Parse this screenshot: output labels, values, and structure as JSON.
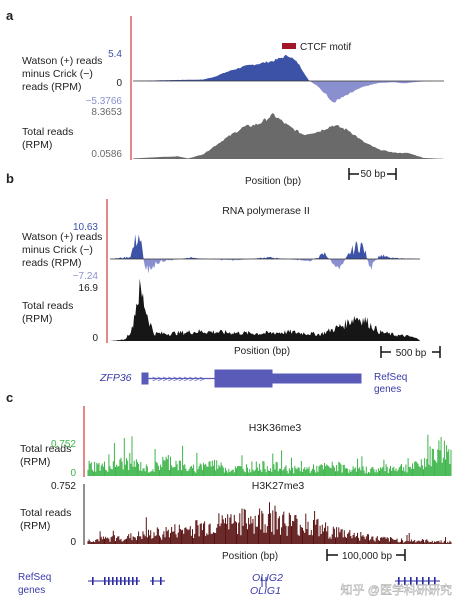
{
  "colors": {
    "watson": "#3b52a6",
    "crick": "#8a90cf",
    "total": "#6a6a6a",
    "pol_total": "#161616",
    "h3k36": "#3cb54a",
    "h3k27": "#5a1212",
    "axis_red": "#d23a3a",
    "ctcf": "#a3162a",
    "gene": "#5a5ab8"
  },
  "panels": {
    "a": {
      "label": "a",
      "ylabel_top": [
        "Watson (+) reads",
        "minus Crick (−)",
        "reads (RPM)"
      ],
      "tick_max": "5.4",
      "tick_zero": "0",
      "tick_min": "−5.3766",
      "ylabel_bottom": [
        "Total reads",
        "(RPM)"
      ],
      "tick_total_max": "8.3653",
      "tick_total_min": "0.0586",
      "legend": "CTCF motif",
      "xlabel": "Position (bp)",
      "scale": "50 bp"
    },
    "b": {
      "label": "b",
      "title": "RNA polymerase II",
      "ylabel_top": [
        "Watson (+) reads",
        "minus Crick (−)",
        "reads (RPM)"
      ],
      "tick_max": "10.63",
      "tick_min": "−7.24",
      "ylabel_bottom": [
        "Total reads",
        "(RPM)"
      ],
      "tick_total_max": "16.9",
      "tick_total_min": "0",
      "xlabel": "Position (bp)",
      "scale": "500 bp",
      "gene": "ZFP36",
      "refseq": [
        "RefSeq",
        "genes"
      ]
    },
    "c": {
      "label": "c",
      "title1": "H3K36me3",
      "title2": "H3K27me3",
      "ylabel_1": [
        "Total reads",
        "(RPM)"
      ],
      "ylabel_2": [
        "Total reads",
        "(RPM)"
      ],
      "tick1_max": "0.752",
      "tick1_min": "0",
      "tick2_max": "0.752",
      "tick2_min": "0",
      "xlabel": "Position (bp)",
      "scale": "100,000 bp",
      "refseq": [
        "RefSeq",
        "genes"
      ],
      "gene1": "OLIG2",
      "gene2": "OLIG1"
    }
  },
  "watermark": "知乎 @医学科研研究",
  "chart_data": [
    {
      "type": "area",
      "panel": "a-strand",
      "ylabel": "Watson (+) reads minus Crick (−) reads (RPM)",
      "ylim": [
        -5.3766,
        5.4
      ],
      "x": [
        0,
        40,
        70,
        80,
        95,
        110,
        125,
        140,
        155,
        165,
        175,
        185,
        190,
        200,
        215,
        230,
        245,
        260,
        270,
        280,
        290,
        300,
        310
      ],
      "values": [
        0,
        0.2,
        0.3,
        0.8,
        2.0,
        3.0,
        3.6,
        4.2,
        5.4,
        3.6,
        0.2,
        -1.5,
        -2.8,
        -5.3766,
        -3.2,
        -1.4,
        -0.5,
        -0.3,
        -0.6,
        -0.3,
        -0.1,
        0,
        0
      ]
    },
    {
      "type": "area",
      "panel": "a-total",
      "ylabel": "Total reads (RPM)",
      "ylim": [
        0.0586,
        8.3653
      ],
      "x": [
        0,
        30,
        45,
        55,
        70,
        90,
        110,
        125,
        140,
        155,
        170,
        185,
        200,
        215,
        230,
        245,
        260,
        275,
        290,
        300,
        310
      ],
      "values": [
        0.1,
        0.4,
        0.5,
        0.1,
        0.9,
        3.6,
        6.0,
        6.6,
        8.3653,
        6.2,
        4.6,
        5.2,
        6.4,
        5.4,
        3.2,
        1.8,
        1.2,
        1.1,
        0.2,
        0.1,
        0.0586
      ]
    },
    {
      "type": "area",
      "panel": "b-strand",
      "ylabel": "Watson (+) reads minus Crick (−) reads (RPM)",
      "ylim": [
        -7.24,
        10.63
      ],
      "x": [
        0,
        20,
        25,
        28,
        32,
        36,
        40,
        50,
        80,
        120,
        160,
        200,
        215,
        225,
        230,
        240,
        250,
        255,
        260,
        265,
        270,
        280,
        310
      ],
      "values": [
        0,
        0.8,
        6.0,
        10.63,
        4.0,
        -7.24,
        -3.5,
        -1.0,
        0.5,
        -0.6,
        0.6,
        -0.8,
        2.0,
        -2.5,
        -3.0,
        2.5,
        6.0,
        3.0,
        -4.0,
        -1.0,
        1.5,
        0.4,
        0
      ]
    },
    {
      "type": "area",
      "panel": "b-total",
      "ylabel": "Total reads (RPM)",
      "ylim": [
        0,
        16.9
      ],
      "x": [
        0,
        15,
        22,
        26,
        30,
        34,
        38,
        44,
        60,
        90,
        120,
        150,
        180,
        210,
        220,
        235,
        245,
        255,
        262,
        270,
        285,
        300,
        310
      ],
      "values": [
        0,
        0.5,
        4.0,
        12.0,
        16.9,
        13.0,
        8.0,
        2.5,
        2.5,
        3.2,
        2.8,
        2.5,
        3.0,
        2.2,
        3.5,
        5.5,
        8.0,
        7.0,
        5.0,
        3.0,
        2.0,
        1.5,
        0.5
      ]
    },
    {
      "type": "bar",
      "panel": "c-H3K36me3",
      "ylabel": "Total reads (RPM)",
      "ylim": [
        0,
        0.752
      ],
      "x": [
        0,
        20,
        40,
        60,
        80,
        100,
        120,
        140,
        160,
        180,
        200,
        220,
        240,
        260,
        280,
        300,
        320,
        340,
        355
      ],
      "values": [
        0.2,
        0.18,
        0.28,
        0.12,
        0.3,
        0.12,
        0.24,
        0.12,
        0.18,
        0.18,
        0.12,
        0.14,
        0.18,
        0.12,
        0.12,
        0.16,
        0.18,
        0.45,
        0.5
      ]
    },
    {
      "type": "bar",
      "panel": "c-H3K27me3",
      "ylabel": "Total reads (RPM)",
      "ylim": [
        0,
        0.752
      ],
      "x": [
        0,
        20,
        40,
        60,
        80,
        100,
        120,
        140,
        160,
        180,
        200,
        220,
        240,
        260,
        280,
        300,
        320,
        340,
        355
      ],
      "values": [
        0.05,
        0.08,
        0.1,
        0.14,
        0.18,
        0.22,
        0.28,
        0.32,
        0.34,
        0.38,
        0.3,
        0.24,
        0.18,
        0.14,
        0.08,
        0.06,
        0.05,
        0.04,
        0.03
      ]
    }
  ]
}
